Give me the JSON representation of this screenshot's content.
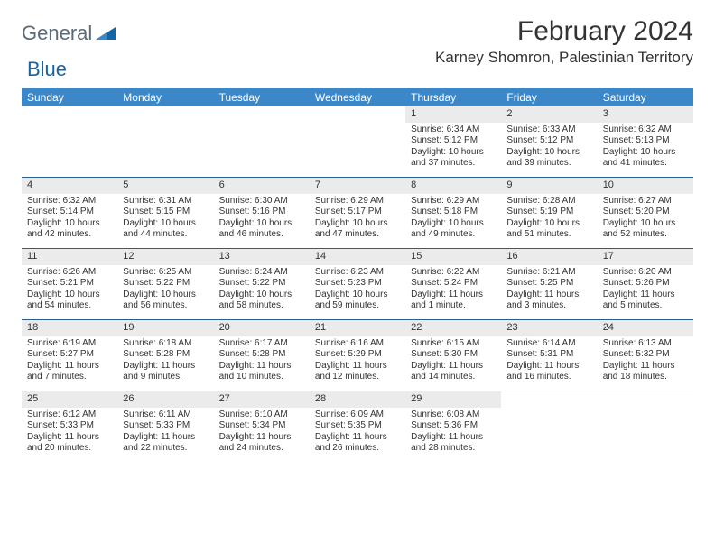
{
  "logo": {
    "part1": "General",
    "part2": "Blue"
  },
  "title": "February 2024",
  "location": "Karney Shomron, Palestinian Territory",
  "colors": {
    "header_bg": "#3b87c8",
    "header_text": "#ffffff",
    "daynum_bg": "#ebebeb",
    "week_border": "#2b5c8a",
    "logo_gray": "#5a6b7a",
    "logo_blue": "#1565a5"
  },
  "day_headers": [
    "Sunday",
    "Monday",
    "Tuesday",
    "Wednesday",
    "Thursday",
    "Friday",
    "Saturday"
  ],
  "weeks": [
    [
      {
        "empty": true
      },
      {
        "empty": true
      },
      {
        "empty": true
      },
      {
        "empty": true
      },
      {
        "num": "1",
        "sunrise": "Sunrise: 6:34 AM",
        "sunset": "Sunset: 5:12 PM",
        "daylight1": "Daylight: 10 hours",
        "daylight2": "and 37 minutes."
      },
      {
        "num": "2",
        "sunrise": "Sunrise: 6:33 AM",
        "sunset": "Sunset: 5:12 PM",
        "daylight1": "Daylight: 10 hours",
        "daylight2": "and 39 minutes."
      },
      {
        "num": "3",
        "sunrise": "Sunrise: 6:32 AM",
        "sunset": "Sunset: 5:13 PM",
        "daylight1": "Daylight: 10 hours",
        "daylight2": "and 41 minutes."
      }
    ],
    [
      {
        "num": "4",
        "sunrise": "Sunrise: 6:32 AM",
        "sunset": "Sunset: 5:14 PM",
        "daylight1": "Daylight: 10 hours",
        "daylight2": "and 42 minutes."
      },
      {
        "num": "5",
        "sunrise": "Sunrise: 6:31 AM",
        "sunset": "Sunset: 5:15 PM",
        "daylight1": "Daylight: 10 hours",
        "daylight2": "and 44 minutes."
      },
      {
        "num": "6",
        "sunrise": "Sunrise: 6:30 AM",
        "sunset": "Sunset: 5:16 PM",
        "daylight1": "Daylight: 10 hours",
        "daylight2": "and 46 minutes."
      },
      {
        "num": "7",
        "sunrise": "Sunrise: 6:29 AM",
        "sunset": "Sunset: 5:17 PM",
        "daylight1": "Daylight: 10 hours",
        "daylight2": "and 47 minutes."
      },
      {
        "num": "8",
        "sunrise": "Sunrise: 6:29 AM",
        "sunset": "Sunset: 5:18 PM",
        "daylight1": "Daylight: 10 hours",
        "daylight2": "and 49 minutes."
      },
      {
        "num": "9",
        "sunrise": "Sunrise: 6:28 AM",
        "sunset": "Sunset: 5:19 PM",
        "daylight1": "Daylight: 10 hours",
        "daylight2": "and 51 minutes."
      },
      {
        "num": "10",
        "sunrise": "Sunrise: 6:27 AM",
        "sunset": "Sunset: 5:20 PM",
        "daylight1": "Daylight: 10 hours",
        "daylight2": "and 52 minutes."
      }
    ],
    [
      {
        "num": "11",
        "sunrise": "Sunrise: 6:26 AM",
        "sunset": "Sunset: 5:21 PM",
        "daylight1": "Daylight: 10 hours",
        "daylight2": "and 54 minutes."
      },
      {
        "num": "12",
        "sunrise": "Sunrise: 6:25 AM",
        "sunset": "Sunset: 5:22 PM",
        "daylight1": "Daylight: 10 hours",
        "daylight2": "and 56 minutes."
      },
      {
        "num": "13",
        "sunrise": "Sunrise: 6:24 AM",
        "sunset": "Sunset: 5:22 PM",
        "daylight1": "Daylight: 10 hours",
        "daylight2": "and 58 minutes."
      },
      {
        "num": "14",
        "sunrise": "Sunrise: 6:23 AM",
        "sunset": "Sunset: 5:23 PM",
        "daylight1": "Daylight: 10 hours",
        "daylight2": "and 59 minutes."
      },
      {
        "num": "15",
        "sunrise": "Sunrise: 6:22 AM",
        "sunset": "Sunset: 5:24 PM",
        "daylight1": "Daylight: 11 hours",
        "daylight2": "and 1 minute."
      },
      {
        "num": "16",
        "sunrise": "Sunrise: 6:21 AM",
        "sunset": "Sunset: 5:25 PM",
        "daylight1": "Daylight: 11 hours",
        "daylight2": "and 3 minutes."
      },
      {
        "num": "17",
        "sunrise": "Sunrise: 6:20 AM",
        "sunset": "Sunset: 5:26 PM",
        "daylight1": "Daylight: 11 hours",
        "daylight2": "and 5 minutes."
      }
    ],
    [
      {
        "num": "18",
        "sunrise": "Sunrise: 6:19 AM",
        "sunset": "Sunset: 5:27 PM",
        "daylight1": "Daylight: 11 hours",
        "daylight2": "and 7 minutes."
      },
      {
        "num": "19",
        "sunrise": "Sunrise: 6:18 AM",
        "sunset": "Sunset: 5:28 PM",
        "daylight1": "Daylight: 11 hours",
        "daylight2": "and 9 minutes."
      },
      {
        "num": "20",
        "sunrise": "Sunrise: 6:17 AM",
        "sunset": "Sunset: 5:28 PM",
        "daylight1": "Daylight: 11 hours",
        "daylight2": "and 10 minutes."
      },
      {
        "num": "21",
        "sunrise": "Sunrise: 6:16 AM",
        "sunset": "Sunset: 5:29 PM",
        "daylight1": "Daylight: 11 hours",
        "daylight2": "and 12 minutes."
      },
      {
        "num": "22",
        "sunrise": "Sunrise: 6:15 AM",
        "sunset": "Sunset: 5:30 PM",
        "daylight1": "Daylight: 11 hours",
        "daylight2": "and 14 minutes."
      },
      {
        "num": "23",
        "sunrise": "Sunrise: 6:14 AM",
        "sunset": "Sunset: 5:31 PM",
        "daylight1": "Daylight: 11 hours",
        "daylight2": "and 16 minutes."
      },
      {
        "num": "24",
        "sunrise": "Sunrise: 6:13 AM",
        "sunset": "Sunset: 5:32 PM",
        "daylight1": "Daylight: 11 hours",
        "daylight2": "and 18 minutes."
      }
    ],
    [
      {
        "num": "25",
        "sunrise": "Sunrise: 6:12 AM",
        "sunset": "Sunset: 5:33 PM",
        "daylight1": "Daylight: 11 hours",
        "daylight2": "and 20 minutes."
      },
      {
        "num": "26",
        "sunrise": "Sunrise: 6:11 AM",
        "sunset": "Sunset: 5:33 PM",
        "daylight1": "Daylight: 11 hours",
        "daylight2": "and 22 minutes."
      },
      {
        "num": "27",
        "sunrise": "Sunrise: 6:10 AM",
        "sunset": "Sunset: 5:34 PM",
        "daylight1": "Daylight: 11 hours",
        "daylight2": "and 24 minutes."
      },
      {
        "num": "28",
        "sunrise": "Sunrise: 6:09 AM",
        "sunset": "Sunset: 5:35 PM",
        "daylight1": "Daylight: 11 hours",
        "daylight2": "and 26 minutes."
      },
      {
        "num": "29",
        "sunrise": "Sunrise: 6:08 AM",
        "sunset": "Sunset: 5:36 PM",
        "daylight1": "Daylight: 11 hours",
        "daylight2": "and 28 minutes."
      },
      {
        "empty": true
      },
      {
        "empty": true
      }
    ]
  ]
}
